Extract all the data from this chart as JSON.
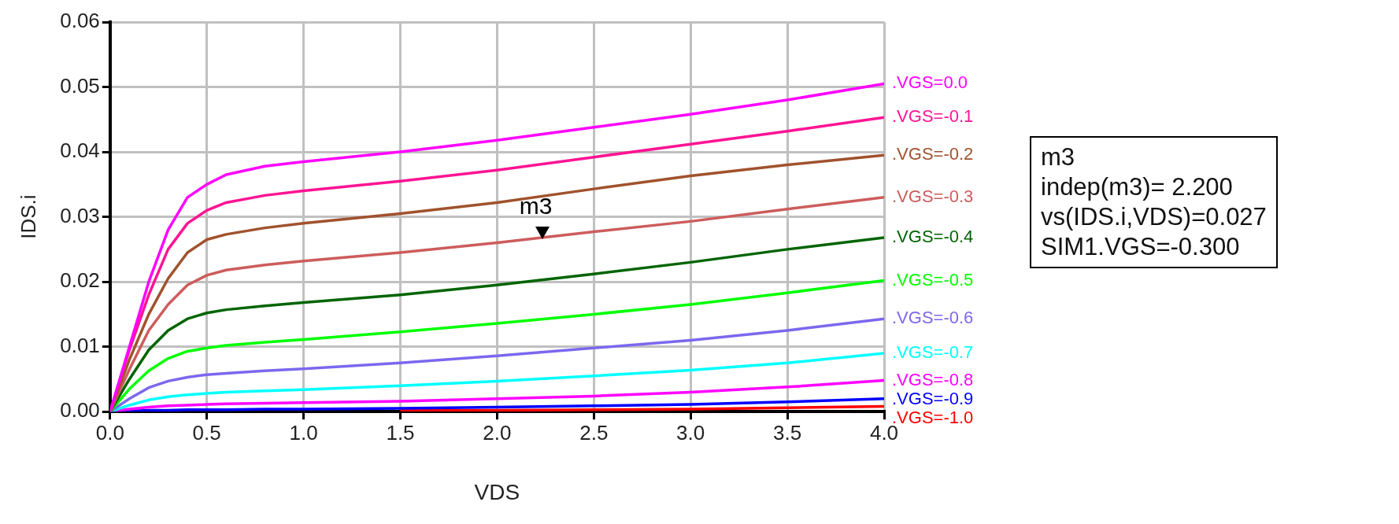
{
  "chart_data": {
    "type": "line",
    "xlabel": "VDS",
    "ylabel": "IDS.i",
    "x": [
      0,
      0.1,
      0.2,
      0.3,
      0.4,
      0.5,
      0.6,
      0.8,
      1.0,
      1.5,
      2,
      2.5,
      3,
      3.5,
      4
    ],
    "series": [
      {
        "name": ".VGS=0.0",
        "color": "#ff00ff",
        "values": [
          0,
          0.01,
          0.02,
          0.028,
          0.033,
          0.035,
          0.0365,
          0.0378,
          0.0385,
          0.04,
          0.0418,
          0.0438,
          0.0458,
          0.048,
          0.0505
        ]
      },
      {
        "name": ".VGS=-0.1",
        "color": "#ff1493",
        "values": [
          0,
          0.0095,
          0.018,
          0.025,
          0.029,
          0.031,
          0.0322,
          0.0333,
          0.034,
          0.0355,
          0.0372,
          0.0392,
          0.0412,
          0.0432,
          0.0453
        ]
      },
      {
        "name": ".VGS=-0.2",
        "color": "#a0522d",
        "values": [
          0,
          0.008,
          0.015,
          0.0205,
          0.0245,
          0.0265,
          0.0273,
          0.0283,
          0.029,
          0.0305,
          0.0322,
          0.0343,
          0.0363,
          0.038,
          0.0395
        ]
      },
      {
        "name": ".VGS=-0.3",
        "color": "#cd5c5c",
        "values": [
          0,
          0.0065,
          0.0125,
          0.0165,
          0.0195,
          0.021,
          0.0218,
          0.0226,
          0.0232,
          0.0245,
          0.026,
          0.0277,
          0.0293,
          0.0312,
          0.033
        ]
      },
      {
        "name": ".VGS=-0.4",
        "color": "#006400",
        "values": [
          0,
          0.005,
          0.0095,
          0.0125,
          0.0143,
          0.0152,
          0.0157,
          0.0163,
          0.0168,
          0.018,
          0.0195,
          0.0212,
          0.023,
          0.025,
          0.0268
        ]
      },
      {
        "name": ".VGS=-0.5",
        "color": "#00ff00",
        "values": [
          0,
          0.0035,
          0.0063,
          0.0082,
          0.0093,
          0.0098,
          0.0102,
          0.0107,
          0.0111,
          0.0123,
          0.0136,
          0.015,
          0.0165,
          0.0183,
          0.0202
        ]
      },
      {
        "name": ".VGS=-0.6",
        "color": "#7b68ee",
        "values": [
          0,
          0.002,
          0.0037,
          0.0047,
          0.0053,
          0.0057,
          0.0059,
          0.0063,
          0.0066,
          0.0075,
          0.0086,
          0.0098,
          0.011,
          0.0125,
          0.0143
        ]
      },
      {
        "name": ".VGS=-0.7",
        "color": "#00ffff",
        "values": [
          0,
          0.001,
          0.0018,
          0.0023,
          0.0026,
          0.0028,
          0.003,
          0.0032,
          0.0034,
          0.004,
          0.0047,
          0.0055,
          0.0064,
          0.0075,
          0.009
        ]
      },
      {
        "name": ".VGS=-0.8",
        "color": "#ff00ff",
        "values": [
          0,
          0.0004,
          0.0007,
          0.0009,
          0.001,
          0.0011,
          0.0012,
          0.0013,
          0.0014,
          0.0016,
          0.002,
          0.0024,
          0.003,
          0.0038,
          0.0048
        ]
      },
      {
        "name": ".VGS=-0.9",
        "color": "#0000ff",
        "values": [
          0,
          0.0001,
          0.0002,
          0.0002,
          0.0003,
          0.0003,
          0.0003,
          0.0004,
          0.0004,
          0.0005,
          0.0007,
          0.0009,
          0.0011,
          0.0015,
          0.002
        ]
      },
      {
        "name": ".VGS=-1.0",
        "color": "#ff0000",
        "values": [
          null,
          null,
          null,
          null,
          null,
          null,
          null,
          null,
          null,
          0.0002,
          0.0002,
          0.0003,
          0.0004,
          0.0006,
          0.0008
        ]
      }
    ],
    "xlim": [
      0,
      4
    ],
    "xticks": [
      {
        "value": 0,
        "label": "0.0"
      },
      {
        "value": 0.5,
        "label": "0.5"
      },
      {
        "value": 1,
        "label": "1.0"
      },
      {
        "value": 1.5,
        "label": "1.5"
      },
      {
        "value": 2,
        "label": "2.0"
      },
      {
        "value": 2.5,
        "label": "2.5"
      },
      {
        "value": 3,
        "label": "3.0"
      },
      {
        "value": 3.5,
        "label": "3.5"
      },
      {
        "value": 4,
        "label": "4.0"
      }
    ],
    "ylim": [
      0,
      0.06
    ],
    "yticks": [
      {
        "value": 0,
        "label": "0.00"
      },
      {
        "value": 0.01,
        "label": "0.01"
      },
      {
        "value": 0.02,
        "label": "0.02"
      },
      {
        "value": 0.03,
        "label": "0.03"
      },
      {
        "value": 0.04,
        "label": "0.04"
      },
      {
        "value": 0.05,
        "label": "0.05"
      },
      {
        "value": 0.06,
        "label": "0.06"
      }
    ],
    "grid": true,
    "legend": false,
    "marker": "none",
    "line_style": "solid",
    "annotations": [
      {
        "text": "m3",
        "x": 2.2,
        "y": 0.027
      },
      "m3",
      "indep(m3)= 2.200",
      "vs(IDS.i,VDS)=0.027",
      "SIM1.VGS=-0.300"
    ]
  }
}
